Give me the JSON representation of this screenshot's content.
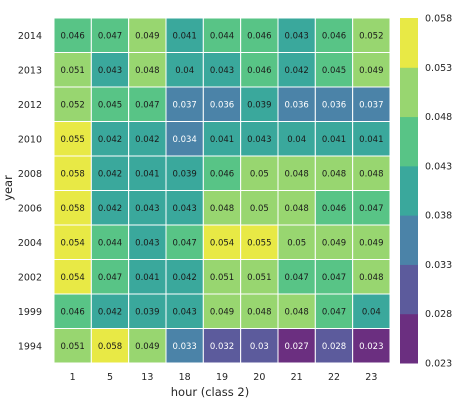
{
  "chart_data": {
    "type": "heatmap",
    "title": "",
    "xlabel": "hour (class 2)",
    "ylabel": "year",
    "x_categories": [
      "1",
      "5",
      "13",
      "18",
      "19",
      "20",
      "21",
      "22",
      "23"
    ],
    "y_categories": [
      "2014",
      "2013",
      "2012",
      "2010",
      "2008",
      "2006",
      "2004",
      "2002",
      "1999",
      "1994"
    ],
    "values": [
      [
        "0.046",
        "0.047",
        "0.049",
        "0.041",
        "0.044",
        "0.046",
        "0.043",
        "0.046",
        "0.052"
      ],
      [
        "0.051",
        "0.043",
        "0.048",
        "0.04",
        "0.043",
        "0.046",
        "0.042",
        "0.045",
        "0.049"
      ],
      [
        "0.052",
        "0.045",
        "0.047",
        "0.037",
        "0.036",
        "0.039",
        "0.036",
        "0.036",
        "0.037"
      ],
      [
        "0.055",
        "0.042",
        "0.042",
        "0.034",
        "0.041",
        "0.043",
        "0.04",
        "0.041",
        "0.041"
      ],
      [
        "0.058",
        "0.042",
        "0.041",
        "0.039",
        "0.046",
        "0.05",
        "0.048",
        "0.048",
        "0.048"
      ],
      [
        "0.058",
        "0.042",
        "0.043",
        "0.043",
        "0.048",
        "0.05",
        "0.048",
        "0.046",
        "0.047"
      ],
      [
        "0.054",
        "0.044",
        "0.043",
        "0.047",
        "0.054",
        "0.055",
        "0.05",
        "0.049",
        "0.049"
      ],
      [
        "0.054",
        "0.047",
        "0.041",
        "0.042",
        "0.051",
        "0.051",
        "0.047",
        "0.047",
        "0.048"
      ],
      [
        "0.046",
        "0.042",
        "0.039",
        "0.043",
        "0.049",
        "0.048",
        "0.048",
        "0.047",
        "0.04"
      ],
      [
        "0.051",
        "0.058",
        "0.049",
        "0.033",
        "0.032",
        "0.03",
        "0.027",
        "0.028",
        "0.023"
      ]
    ],
    "colorbar": {
      "min": 0.023,
      "max": 0.058,
      "ticks": [
        "0.058",
        "0.053",
        "0.048",
        "0.043",
        "0.038",
        "0.033",
        "0.028",
        "0.023"
      ],
      "bins": 7
    },
    "colormap": [
      "#6b2f80",
      "#5c5b9c",
      "#4b83a8",
      "#3aa89c",
      "#58c486",
      "#98d670",
      "#e8e945"
    ],
    "grid": true,
    "cell_borders": "#ffffff"
  }
}
